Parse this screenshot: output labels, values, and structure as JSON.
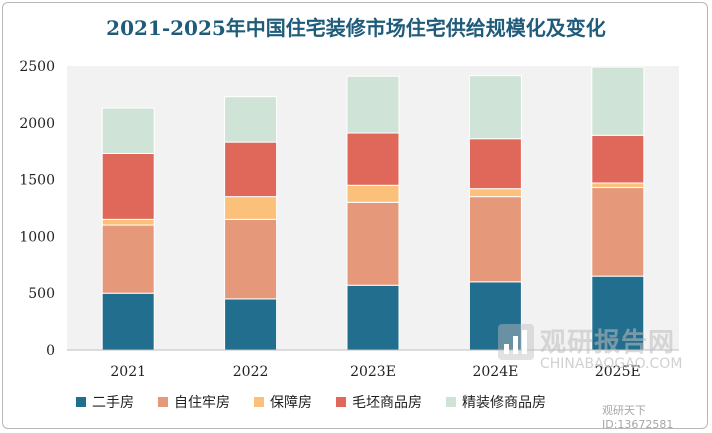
{
  "title": "2021-2025年中国住宅装修市场住宅供给规模化及变化",
  "chart_data": {
    "type": "bar",
    "stacked": true,
    "categories": [
      "2021",
      "2022",
      "2023E",
      "2024E",
      "2025E"
    ],
    "ylim": [
      0,
      2500
    ],
    "yticks": [
      0,
      500,
      1000,
      1500,
      2000,
      2500
    ],
    "grid": false,
    "legend_position": "bottom",
    "series": [
      {
        "name": "二手房",
        "color": "#226e8e",
        "values": [
          500,
          450,
          570,
          600,
          650
        ]
      },
      {
        "name": "自住牢房",
        "color": "#e5987a",
        "values": [
          600,
          700,
          730,
          750,
          780
        ]
      },
      {
        "name": "保障房",
        "color": "#fbc07a",
        "values": [
          50,
          200,
          150,
          70,
          40
        ]
      },
      {
        "name": "毛坯商品房",
        "color": "#e0685a",
        "values": [
          580,
          480,
          460,
          440,
          420
        ]
      },
      {
        "name": "精装修商品房",
        "color": "#cfe3d6",
        "values": [
          400,
          400,
          500,
          555,
          600
        ]
      }
    ]
  },
  "watermark": {
    "name": "观研报告网",
    "url": "CHINABAOGAO.COM",
    "id": "观研天下 ID:13672581"
  }
}
